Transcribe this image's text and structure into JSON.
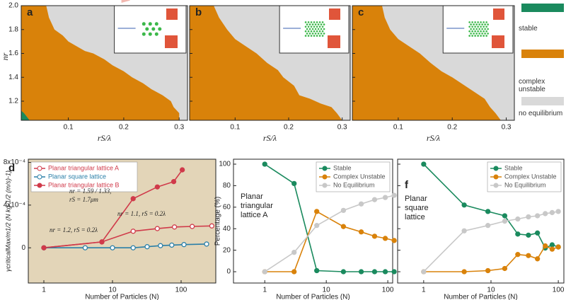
{
  "chart_data": [
    {
      "type": "region",
      "label": "a",
      "xlabel": "rS/λ",
      "ylabel": "nr",
      "background": "#d9d9d9",
      "xlim": [
        0.015,
        0.315
      ],
      "ylim": [
        1.04,
        2.0
      ],
      "xticks": [
        0.1,
        0.2,
        0.3
      ],
      "yticks": [
        1.2,
        1.4,
        1.6,
        1.8,
        {
          "value": 2.0,
          "label": "2.0"
        }
      ],
      "ytick_labels": true,
      "regions": [
        {
          "color": "#d9820a",
          "x": [
            0.06,
            0.065,
            0.075,
            0.09,
            0.1,
            0.115,
            0.13,
            0.145,
            0.165,
            0.18,
            0.2,
            0.215,
            0.235,
            0.25,
            0.27,
            0.285,
            0.29,
            0.3,
            0.3
          ],
          "values": [
            2.0,
            1.9,
            1.8,
            1.75,
            1.7,
            1.66,
            1.62,
            1.6,
            1.55,
            1.5,
            1.45,
            1.4,
            1.35,
            1.3,
            1.25,
            1.2,
            1.15,
            1.1,
            1.04
          ]
        },
        {
          "color": "#1a8a5e",
          "x": [
            0.015,
            0.02,
            0.025,
            0.03
          ],
          "values": [
            1.12,
            1.1,
            1.07,
            1.04
          ]
        }
      ]
    },
    {
      "type": "region",
      "label": "b",
      "xlabel": "rS/λ",
      "background": "#d9d9d9",
      "xlim": [
        0.015,
        0.315
      ],
      "ylim": [
        1.04,
        2.0
      ],
      "xticks": [
        0.1,
        0.2,
        0.3
      ],
      "yticks": [
        1.2,
        1.4,
        1.6,
        1.8,
        {
          "value": 2.0,
          "label": "2.0"
        }
      ],
      "ytick_labels": false,
      "regions": [
        {
          "color": "#d9820a",
          "x": [
            0.06,
            0.07,
            0.085,
            0.1,
            0.12,
            0.14,
            0.16,
            0.18,
            0.19,
            0.21,
            0.22,
            0.24,
            0.26,
            0.28,
            0.29,
            0.3
          ],
          "values": [
            2.0,
            1.9,
            1.8,
            1.72,
            1.66,
            1.6,
            1.52,
            1.46,
            1.4,
            1.33,
            1.25,
            1.22,
            1.18,
            1.15,
            1.1,
            1.04
          ]
        }
      ]
    },
    {
      "type": "region",
      "label": "c",
      "xlabel": "rS/λ",
      "background": "#d9d9d9",
      "xlim": [
        0.015,
        0.315
      ],
      "ylim": [
        1.04,
        2.0
      ],
      "xticks": [
        0.1,
        0.2,
        0.3
      ],
      "yticks": [
        1.2,
        1.4,
        1.6,
        1.8,
        {
          "value": 2.0,
          "label": "2.0"
        }
      ],
      "ytick_labels": false,
      "regions": [
        {
          "color": "#d9820a",
          "x": [
            0.07,
            0.075,
            0.085,
            0.1,
            0.12,
            0.14,
            0.16,
            0.18,
            0.2,
            0.22,
            0.24,
            0.26,
            0.27,
            0.28,
            0.29
          ],
          "values": [
            2.0,
            1.9,
            1.8,
            1.72,
            1.66,
            1.6,
            1.52,
            1.45,
            1.4,
            1.34,
            1.28,
            1.22,
            1.15,
            1.1,
            1.04
          ]
        }
      ]
    },
    {
      "type": "line",
      "label": "d",
      "xlabel": "Number of Particles (N)",
      "ylabel": "γcriticalMax/m1/2 (N kg-1/2 (m/s)-1)",
      "background": "#e3d5b8",
      "xscale": "log",
      "xlim": [
        0.593,
        320
      ],
      "ylim": [
        -0.00033,
        0.00083
      ],
      "xticks": [
        1,
        10,
        100
      ],
      "yticks": [
        0,
        {
          "value": 0.0004,
          "label": "4x10⁻⁴"
        },
        {
          "value": 0.0008,
          "label": "8x10⁻⁴"
        }
      ],
      "ytick_labels": true,
      "legend": "upper left",
      "series": [
        {
          "name": "Planar triangular lattice A",
          "color": "#d03a4a",
          "filled": false,
          "x": [
            1,
            7,
            20,
            45,
            80,
            145,
            280
          ],
          "values": [
            0,
            5.5e-05,
            0.000155,
            0.00018,
            0.000195,
            0.0002,
            0.000205
          ]
        },
        {
          "name": "Planar square lattice",
          "color": "#2a7fa8",
          "filled": false,
          "x": [
            1,
            4,
            10,
            20,
            32,
            50,
            73,
            110,
            235
          ],
          "values": [
            0,
            0,
            0,
            0,
            1e-05,
            2e-05,
            2.5e-05,
            3e-05,
            3.5e-05
          ]
        },
        {
          "name": "Planar triangular lattice B",
          "color": "#d03a4a",
          "filled": true,
          "x": [
            1,
            7,
            20,
            45,
            78,
            104
          ],
          "values": [
            0,
            5.5e-05,
            0.00046,
            0.00057,
            0.00062,
            0.00073
          ]
        }
      ],
      "annotations": [
        "nr = 1.59 / 1.33,",
        "rS = 1.7μm",
        "nr = 1.1,  rS = 0.2λ",
        "nr = 1.2,  rS = 0.2λ"
      ]
    },
    {
      "type": "line",
      "label": "e",
      "xlabel": "Number of Particles (N)",
      "ylabel": "Percentage (%)",
      "note": "Planar triangular lattice A",
      "xscale": "log",
      "xlim": [
        0.31,
        120
      ],
      "ylim": [
        -10.5,
        104.6
      ],
      "xticks": [
        1,
        10,
        100
      ],
      "yticks": [
        0,
        20,
        40,
        60,
        80,
        100
      ],
      "ytick_labels": true,
      "legend": "upper right",
      "series": [
        {
          "name": "Stable",
          "color": "#1a8a5e",
          "filled": true,
          "x": [
            1,
            3,
            7,
            19,
            37,
            61,
            91,
            127
          ],
          "values": [
            100,
            82,
            1,
            0,
            0,
            0,
            0,
            0
          ]
        },
        {
          "name": "Complex Unstable",
          "color": "#d9820a",
          "filled": true,
          "x": [
            1,
            3,
            7,
            19,
            37,
            61,
            91,
            127
          ],
          "values": [
            0,
            0,
            56,
            42,
            37,
            33,
            31,
            29
          ]
        },
        {
          "name": "No Equilibrium",
          "color": "#c8c8c8",
          "filled": true,
          "x": [
            1,
            3,
            7,
            19,
            37,
            61,
            91,
            127
          ],
          "values": [
            0,
            18,
            43,
            57,
            63,
            67,
            69,
            71
          ]
        }
      ]
    },
    {
      "type": "line",
      "label": "f",
      "xlabel": "Number of Particles (N)",
      "note": "Planar square lattice",
      "xscale": "log",
      "xlim": [
        0.41,
        121
      ],
      "ylim": [
        -10.5,
        104.6
      ],
      "xticks": [
        1,
        10,
        100
      ],
      "yticks": [
        0,
        20,
        40,
        60,
        80,
        100
      ],
      "ytick_labels": false,
      "legend": "upper right",
      "series": [
        {
          "name": "Stable",
          "color": "#1a8a5e",
          "filled": true,
          "x": [
            1,
            4,
            9,
            16,
            25,
            36,
            49,
            64,
            81,
            100
          ],
          "values": [
            100,
            62,
            56,
            52,
            35,
            34,
            36,
            22,
            25,
            23
          ]
        },
        {
          "name": "Complex Unstable",
          "color": "#d9820a",
          "filled": true,
          "x": [
            1,
            4,
            9,
            16,
            25,
            36,
            49,
            64,
            81,
            100
          ],
          "values": [
            0,
            0,
            1,
            3,
            16,
            15,
            12,
            24,
            21,
            23
          ]
        },
        {
          "name": "No Equilibrium",
          "color": "#c8c8c8",
          "filled": true,
          "x": [
            1,
            4,
            9,
            16,
            25,
            36,
            49,
            64,
            81,
            100
          ],
          "values": [
            0,
            38,
            43,
            47,
            49,
            51,
            52,
            54,
            55,
            56
          ]
        }
      ]
    }
  ],
  "region_legend": [
    {
      "name": "stable",
      "color": "#1a8a5e"
    },
    {
      "name": "complex unstable",
      "color": "#d9820a"
    },
    {
      "name": "no equilibrium",
      "color": "#d9d9d9"
    }
  ]
}
